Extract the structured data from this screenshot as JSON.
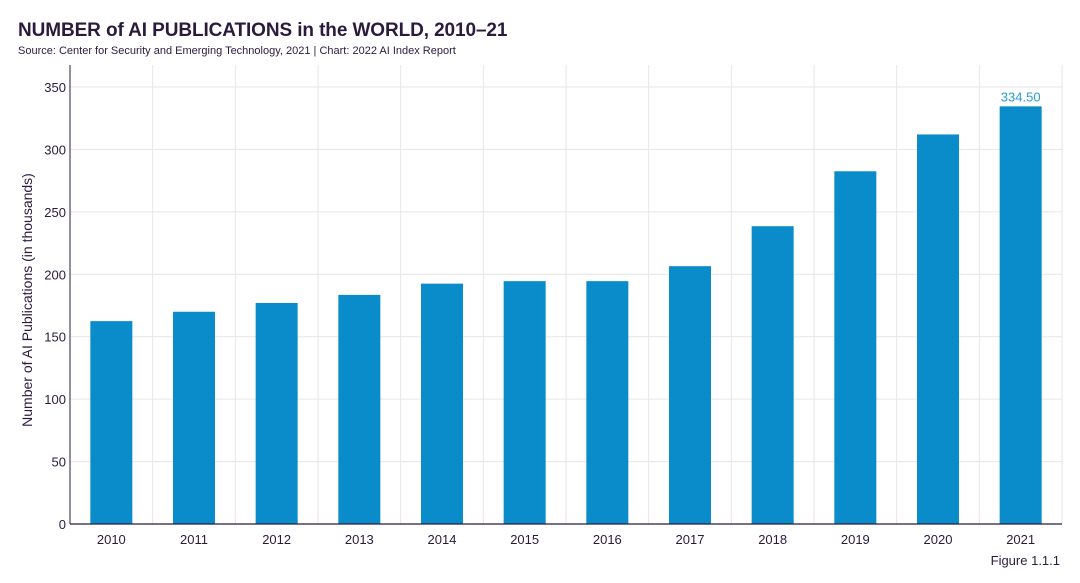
{
  "header": {
    "title": "NUMBER of AI PUBLICATIONS in the WORLD, 2010–21",
    "source": "Source: Center for Security and Emerging Technology, 2021 | Chart: 2022 AI Index Report"
  },
  "footer": {
    "figure_label": "Figure 1.1.1"
  },
  "colors": {
    "bar": "#0a8ccb",
    "label": "#2b9bd6",
    "grid": "#e6e6e6",
    "axis": "#2a1b3d"
  },
  "chart_data": {
    "type": "bar",
    "title": "NUMBER of AI PUBLICATIONS in the WORLD, 2010–21",
    "xlabel": "",
    "ylabel": "Number of AI Publications (in thousands)",
    "categories": [
      "2010",
      "2011",
      "2012",
      "2013",
      "2014",
      "2015",
      "2016",
      "2017",
      "2018",
      "2019",
      "2020",
      "2021"
    ],
    "values": [
      162.5,
      170,
      177,
      183.5,
      192.5,
      194.5,
      194.5,
      206.5,
      238.5,
      282.5,
      312,
      334.5
    ],
    "value_labels": [
      {
        "index": 11,
        "text": "334.50"
      }
    ],
    "ylim": [
      0,
      350
    ],
    "yticks": [
      0,
      50,
      100,
      150,
      200,
      250,
      300,
      350
    ],
    "grid": true
  }
}
